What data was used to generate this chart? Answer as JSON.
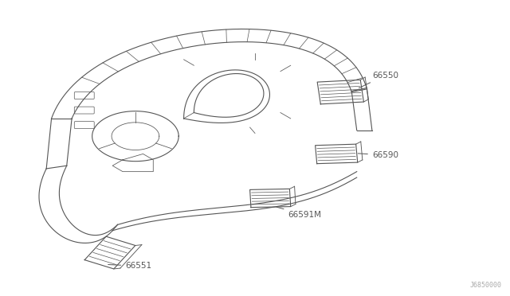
{
  "background_color": "#ffffff",
  "line_color": "#555555",
  "label_color": "#555555",
  "diagram_ref": "J6850000",
  "figsize": [
    6.4,
    3.72
  ],
  "dpi": 100
}
